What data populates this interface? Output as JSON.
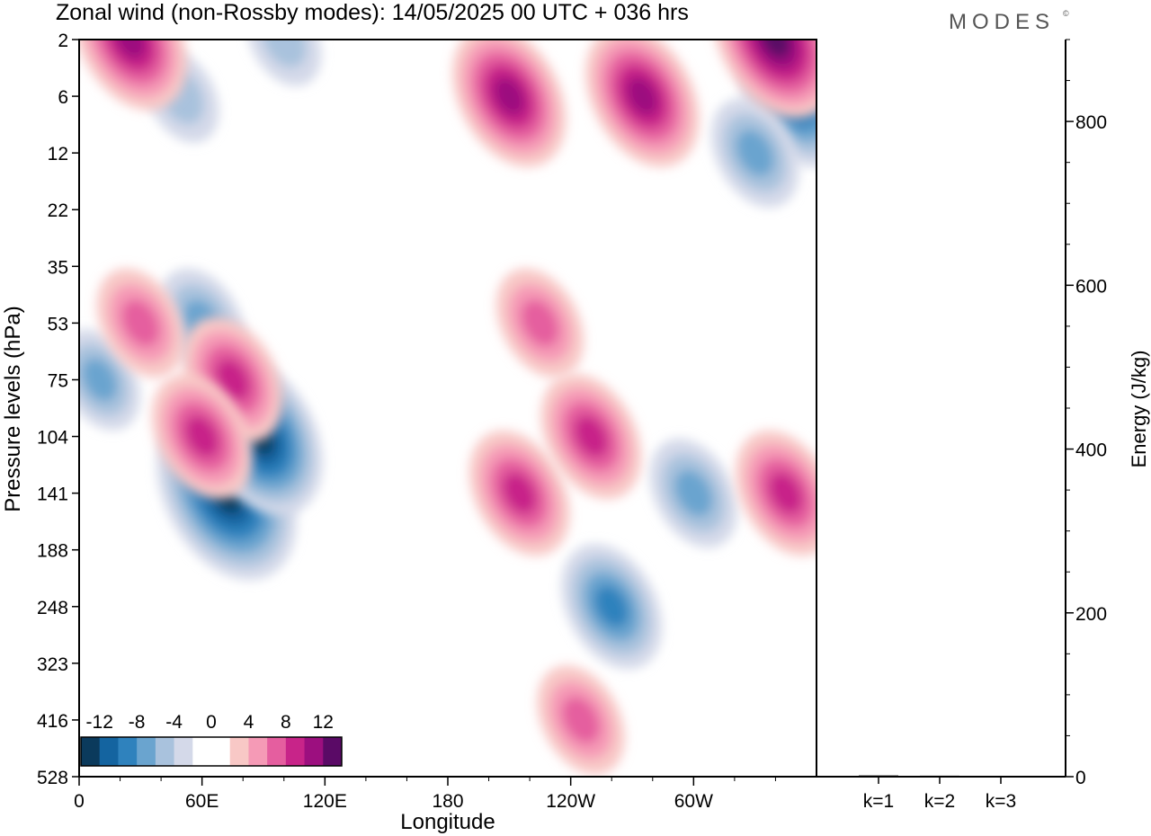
{
  "header": {
    "title": "Zonal wind (non-Rossby modes):  14/05/2025  00 UTC  + 036 hrs",
    "logo": "MODES",
    "logo_mark": "©"
  },
  "chart_data": [
    {
      "type": "heatmap",
      "title": "Zonal wind (non-Rossby modes):  14/05/2025  00 UTC  + 036 hrs",
      "xlabel": "Longitude",
      "ylabel": "Pressure levels (hPa)",
      "x_ticks": [
        {
          "label": "0",
          "lon": 0
        },
        {
          "label": "60E",
          "lon": 60
        },
        {
          "label": "120E",
          "lon": 120
        },
        {
          "label": "180",
          "lon": 180
        },
        {
          "label": "120W",
          "lon": 240
        },
        {
          "label": "60W",
          "lon": 300
        }
      ],
      "xlim": [
        0,
        360
      ],
      "y_levels": [
        "2",
        "6",
        "12",
        "22",
        "35",
        "53",
        "75",
        "104",
        "141",
        "188",
        "248",
        "323",
        "416",
        "528"
      ],
      "colorbar": {
        "labels": [
          "-12",
          "-8",
          "-4",
          "0",
          "4",
          "8",
          "12"
        ],
        "colors": [
          "#0b3a5c",
          "#1464a0",
          "#2f82bd",
          "#6aa4cf",
          "#a9c2dd",
          "#d4d9e9",
          "#ffffff",
          "#ffffff",
          "#f8c8c6",
          "#f59ab6",
          "#e55e9f",
          "#c82489",
          "#9c0f7f",
          "#5a0a66"
        ]
      },
      "features": [
        {
          "sign": "negative",
          "peak": -14,
          "lon": 72,
          "level": "141"
        },
        {
          "sign": "negative",
          "peak": -12,
          "lon": 88,
          "level": "104"
        },
        {
          "sign": "negative",
          "peak": -8,
          "lon": 260,
          "level": "248"
        },
        {
          "sign": "negative",
          "peak": -6,
          "lon": 300,
          "level": "141"
        },
        {
          "sign": "negative",
          "peak": -10,
          "lon": 350,
          "level": "6"
        },
        {
          "sign": "negative",
          "peak": -6,
          "lon": 330,
          "level": "12"
        },
        {
          "sign": "negative",
          "peak": -6,
          "lon": 60,
          "level": "53"
        },
        {
          "sign": "negative",
          "peak": -5,
          "lon": 10,
          "level": "75"
        },
        {
          "sign": "negative",
          "peak": -4,
          "lon": 50,
          "level": "6"
        },
        {
          "sign": "negative",
          "peak": -4,
          "lon": 100,
          "level": "2"
        },
        {
          "sign": "positive",
          "peak": 8,
          "lon": 215,
          "level": "141"
        },
        {
          "sign": "positive",
          "peak": 8,
          "lon": 250,
          "level": "104"
        },
        {
          "sign": "positive",
          "peak": 8,
          "lon": 75,
          "level": "75"
        },
        {
          "sign": "positive",
          "peak": 8,
          "lon": 60,
          "level": "104"
        },
        {
          "sign": "positive",
          "peak": 6,
          "lon": 30,
          "level": "53"
        },
        {
          "sign": "positive",
          "peak": 10,
          "lon": 25,
          "level": "2"
        },
        {
          "sign": "positive",
          "peak": 12,
          "lon": 340,
          "level": "2"
        },
        {
          "sign": "positive",
          "peak": 10,
          "lon": 210,
          "level": "6"
        },
        {
          "sign": "positive",
          "peak": 10,
          "lon": 275,
          "level": "6"
        },
        {
          "sign": "positive",
          "peak": 8,
          "lon": 345,
          "level": "141"
        },
        {
          "sign": "positive",
          "peak": 6,
          "lon": 245,
          "level": "416"
        },
        {
          "sign": "positive",
          "peak": 6,
          "lon": 225,
          "level": "53"
        }
      ]
    },
    {
      "type": "bar",
      "ylabel": "Energy (J/kg)",
      "categories": [
        "k=1",
        "k=2",
        "k=3"
      ],
      "values": [
        1.5,
        1.2,
        0.8
      ],
      "ylim": [
        0,
        900
      ],
      "y_ticks": [
        "0",
        "200",
        "400",
        "600",
        "800"
      ]
    }
  ]
}
